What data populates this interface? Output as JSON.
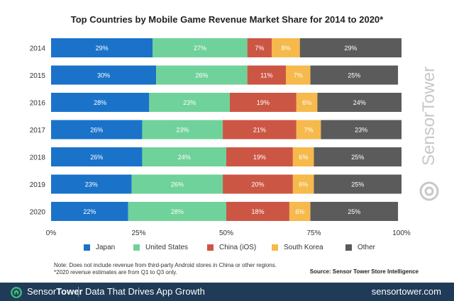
{
  "chart_data": {
    "type": "bar",
    "orientation": "horizontal",
    "stacked": true,
    "title": "Top Countries by Mobile Game Revenue Market Share for 2014 to 2020*",
    "categories": [
      "2014",
      "2015",
      "2016",
      "2017",
      "2018",
      "2019",
      "2020"
    ],
    "series": [
      {
        "name": "Japan",
        "color": "#1a73c9",
        "values": [
          29,
          30,
          28,
          26,
          26,
          23,
          22
        ]
      },
      {
        "name": "United States",
        "color": "#6fd29a",
        "values": [
          27,
          26,
          23,
          23,
          24,
          26,
          28
        ]
      },
      {
        "name": "China (iOS)",
        "color": "#cc5644",
        "values": [
          7,
          11,
          19,
          21,
          19,
          20,
          18
        ]
      },
      {
        "name": "South Korea",
        "color": "#f6b94c",
        "values": [
          8,
          7,
          6,
          7,
          6,
          6,
          6
        ]
      },
      {
        "name": "Other",
        "color": "#5b5b5b",
        "values": [
          29,
          25,
          24,
          23,
          25,
          25,
          25
        ]
      }
    ],
    "xlim": [
      0,
      100
    ],
    "xticks": [
      "0%",
      "25%",
      "50%",
      "75%",
      "100%"
    ],
    "legend_position": "bottom",
    "grid": false
  },
  "note_lines": [
    "Note: Does not include revenue from third-party Android stores in China or other regions.",
    "*2020 revenue estimates are from Q1 to Q3 only."
  ],
  "source": "Source: Sensor Tower Store Intelligence",
  "watermark": "SensorTower",
  "footer": {
    "brand_light": "Sensor",
    "brand_bold": "Tower",
    "tagline": "Data That Drives App Growth",
    "url": "sensortower.com"
  }
}
